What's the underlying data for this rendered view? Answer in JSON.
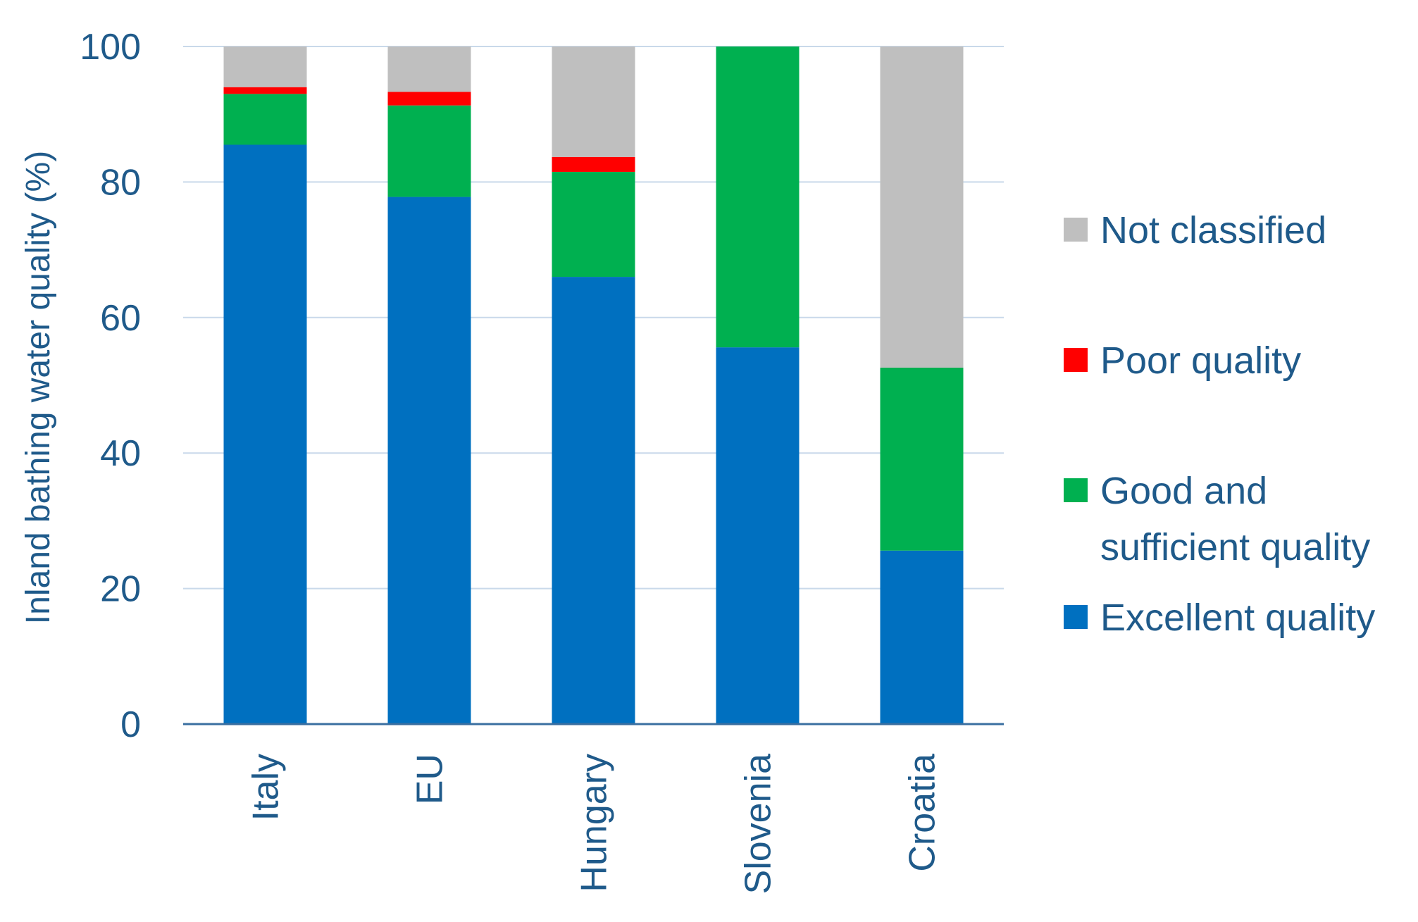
{
  "chart_data": {
    "type": "bar",
    "stacked": true,
    "title": "",
    "xlabel": "",
    "ylabel": "Inland bathing water quality (%)",
    "ylim": [
      0,
      100
    ],
    "yticks": [
      0,
      20,
      40,
      60,
      80,
      100
    ],
    "grid": "horizontal",
    "legend_position": "right",
    "categories": [
      "Italy",
      "EU",
      "Hungary",
      "Slovenia",
      "Croatia"
    ],
    "series": [
      {
        "name": "Excellent quality",
        "color": "#0070c0",
        "values": [
          85.5,
          77.8,
          66.0,
          55.6,
          25.6
        ]
      },
      {
        "name": "Good and sufficient quality",
        "color": "#00b050",
        "values": [
          7.5,
          13.5,
          15.5,
          44.4,
          27.0
        ]
      },
      {
        "name": "Poor quality",
        "color": "#ff0000",
        "values": [
          1.0,
          2.0,
          2.2,
          0.0,
          0.0
        ]
      },
      {
        "name": "Not classified",
        "color": "#bfbfbf",
        "values": [
          6.0,
          6.7,
          16.3,
          0.0,
          47.4
        ]
      }
    ],
    "legend": [
      {
        "lines": [
          "Not classified"
        ],
        "color": "#bfbfbf"
      },
      {
        "lines": [
          "Poor quality"
        ],
        "color": "#ff0000"
      },
      {
        "lines": [
          "Good and",
          "sufficient quality"
        ],
        "color": "#00b050"
      },
      {
        "lines": [
          "Excellent quality"
        ],
        "color": "#0070c0"
      }
    ],
    "colors": {
      "text": "#1f5a8a",
      "grid": "#c9d9ea",
      "axis": "#3a6fa0"
    }
  }
}
